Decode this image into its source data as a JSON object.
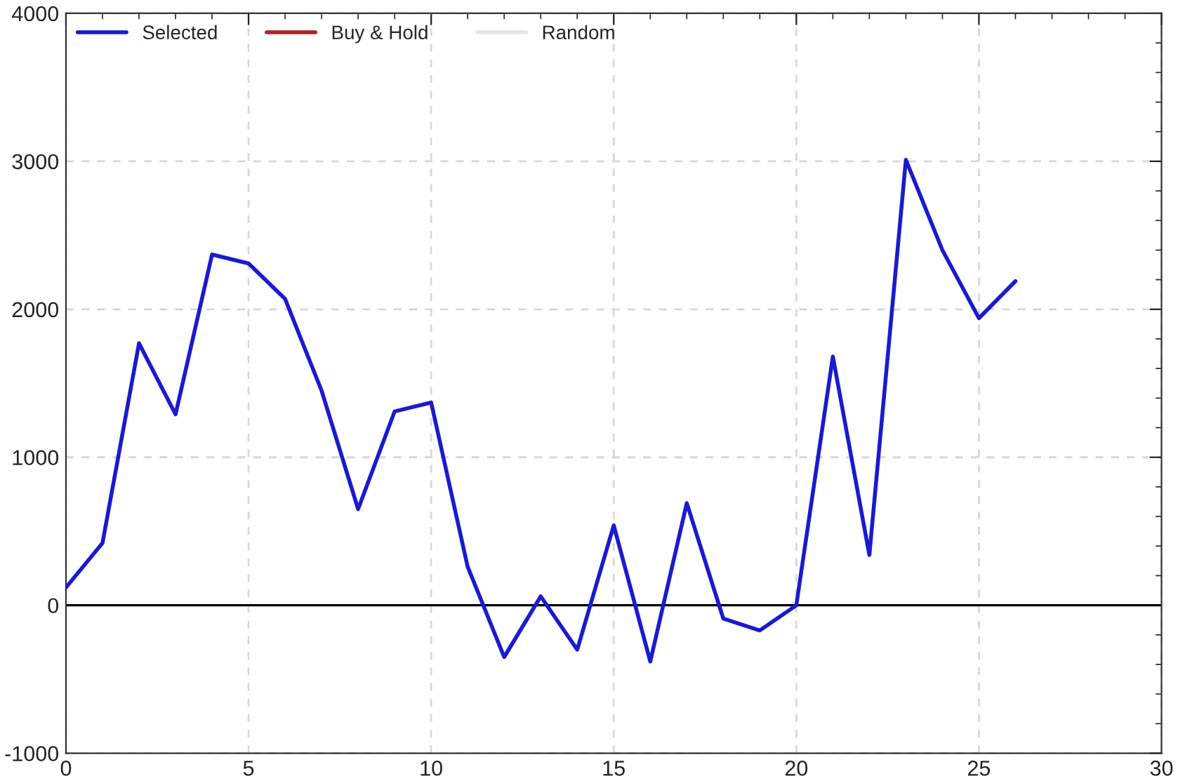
{
  "chart_data": {
    "type": "line",
    "x": [
      0,
      1,
      2,
      3,
      4,
      5,
      6,
      7,
      8,
      9,
      10,
      11,
      12,
      13,
      14,
      15,
      16,
      17,
      18,
      19,
      20,
      21,
      22,
      23,
      24,
      25,
      26
    ],
    "series": [
      {
        "name": "Selected",
        "color": "#1a1ad0",
        "values": [
          120,
          420,
          1770,
          1290,
          2370,
          2310,
          2070,
          1450,
          650,
          1310,
          1370,
          260,
          -350,
          60,
          -300,
          540,
          -380,
          690,
          -90,
          -170,
          0,
          1680,
          340,
          3010,
          2400,
          1940,
          2190
        ]
      },
      {
        "name": "Buy & Hold",
        "color": "#b22222",
        "values": [
          null,
          null,
          null,
          null,
          null,
          null,
          null,
          null,
          null,
          null,
          null,
          null,
          null,
          null,
          null,
          null,
          null,
          null,
          null,
          null,
          null,
          null,
          null,
          null,
          null,
          null,
          null
        ]
      },
      {
        "name": "Random",
        "color": "#e6e6e6",
        "values": [
          null,
          null,
          null,
          null,
          null,
          null,
          null,
          null,
          null,
          null,
          null,
          null,
          null,
          null,
          null,
          null,
          null,
          null,
          null,
          null,
          null,
          null,
          null,
          null,
          null,
          null,
          null
        ]
      }
    ],
    "xlim": [
      0,
      30
    ],
    "xticks": [
      0,
      {
        "value": 1,
        "label": null
      },
      {
        "value": 2,
        "label": null
      },
      {
        "value": 3,
        "label": null
      },
      {
        "value": 4,
        "label": null
      },
      5,
      {
        "value": 6,
        "label": null
      },
      {
        "value": 7,
        "label": null
      },
      {
        "value": 8,
        "label": null
      },
      {
        "value": 9,
        "label": null
      },
      10,
      {
        "value": 11,
        "label": null
      },
      {
        "value": 12,
        "label": null
      },
      {
        "value": 13,
        "label": null
      },
      {
        "value": 14,
        "label": null
      },
      15,
      {
        "value": 16,
        "label": null
      },
      {
        "value": 17,
        "label": null
      },
      {
        "value": 18,
        "label": null
      },
      {
        "value": 19,
        "label": null
      },
      20,
      {
        "value": 21,
        "label": null
      },
      {
        "value": 22,
        "label": null
      },
      {
        "value": 23,
        "label": null
      },
      {
        "value": 24,
        "label": null
      },
      25,
      {
        "value": 26,
        "label": null
      },
      {
        "value": 27,
        "label": null
      },
      {
        "value": 28,
        "label": null
      },
      {
        "value": 29,
        "label": null
      },
      30
    ],
    "ylim": [
      -1000,
      4000
    ],
    "yticks": [
      -1000,
      {
        "value": -800,
        "label": null
      },
      {
        "value": -600,
        "label": null
      },
      {
        "value": -400,
        "label": null
      },
      {
        "value": -200,
        "label": null
      },
      0,
      {
        "value": 200,
        "label": null
      },
      {
        "value": 400,
        "label": null
      },
      {
        "value": 600,
        "label": null
      },
      {
        "value": 800,
        "label": null
      },
      1000,
      {
        "value": 1200,
        "label": null
      },
      {
        "value": 1400,
        "label": null
      },
      {
        "value": 1600,
        "label": null
      },
      {
        "value": 1800,
        "label": null
      },
      2000,
      {
        "value": 2200,
        "label": null
      },
      {
        "value": 2400,
        "label": null
      },
      {
        "value": 2600,
        "label": null
      },
      {
        "value": 2800,
        "label": null
      },
      3000,
      {
        "value": 3200,
        "label": null
      },
      {
        "value": 3400,
        "label": null
      },
      {
        "value": 3600,
        "label": null
      },
      {
        "value": 3800,
        "label": null
      },
      4000
    ],
    "ref_lines": [
      {
        "axis": "y",
        "value": 0,
        "color": "#000000",
        "line_style": "solid"
      }
    ],
    "grid": true,
    "legend": "top left",
    "marker": "none",
    "line_style": "solid"
  }
}
